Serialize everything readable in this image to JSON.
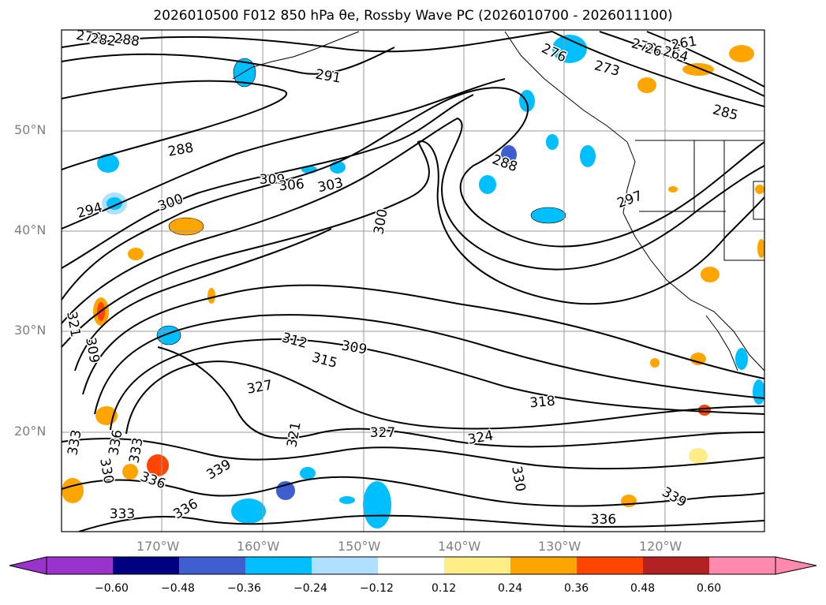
{
  "title": "2026010500 F012 850 hPa θe, Rossby Wave PC (2026010700 - 2026011100)",
  "axes": {
    "lat_labels": [
      "50°N",
      "40°N",
      "30°N",
      "20°N"
    ],
    "lon_labels": [
      "170°W",
      "160°W",
      "150°W",
      "140°W",
      "130°W",
      "120°W"
    ]
  },
  "contour_labels": [
    "279",
    "282",
    "288",
    "291",
    "288",
    "294",
    "300",
    "309",
    "306",
    "303",
    "300",
    "288",
    "297",
    "276",
    "273",
    "270",
    "267",
    "264",
    "261",
    "285",
    "312",
    "315",
    "309",
    "318",
    "324",
    "321",
    "327",
    "327",
    "309",
    "321",
    "333",
    "336",
    "333",
    "330",
    "336",
    "339",
    "336",
    "333",
    "330",
    "339",
    "336"
  ],
  "colorbar": {
    "colors": [
      "#9933cc",
      "#000080",
      "#3f5fd0",
      "#00bfff",
      "#b0e0ff",
      "#ffffff",
      "#ffee88",
      "#ffa500",
      "#ff4500",
      "#b22222",
      "#ff8aad"
    ],
    "labels": [
      "−0.60",
      "−0.48",
      "−0.36",
      "−0.24",
      "−0.12",
      "0.12",
      "0.24",
      "0.36",
      "0.48",
      "0.60"
    ]
  }
}
